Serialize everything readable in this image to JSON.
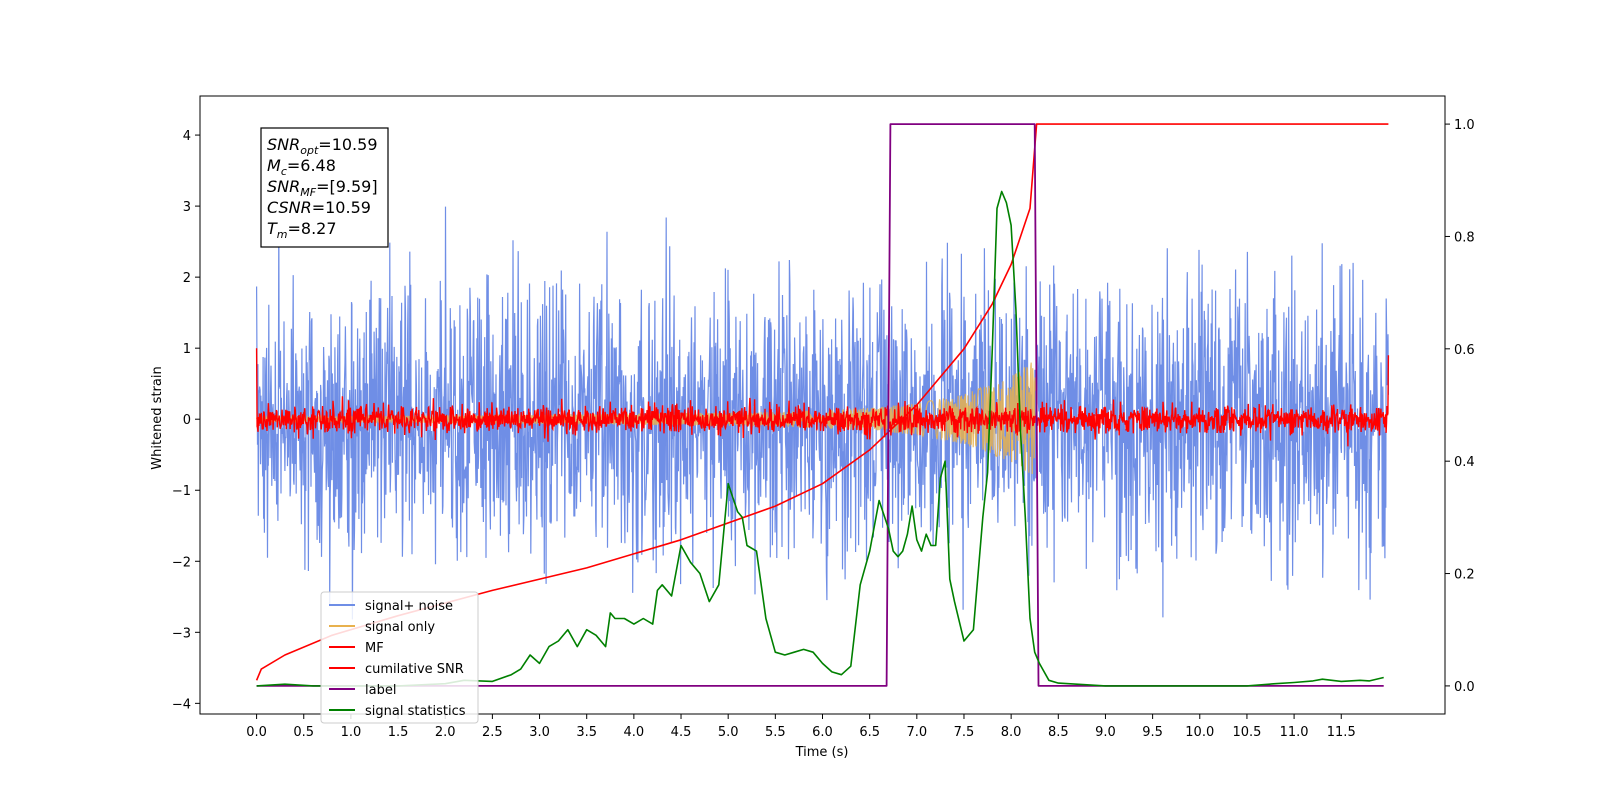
{
  "chart_data": {
    "type": "line",
    "xlabel": "Time (s)",
    "ylabel": "Whitened strain",
    "xlim": [
      -0.6,
      12.6
    ],
    "ylim_left": [
      -4.15,
      4.55
    ],
    "ylim_right": [
      -0.05,
      1.05
    ],
    "x_ticks": [
      0.0,
      0.5,
      1.0,
      1.5,
      2.0,
      2.5,
      3.0,
      3.5,
      4.0,
      4.5,
      5.0,
      5.5,
      6.0,
      6.5,
      7.0,
      7.5,
      8.0,
      8.5,
      9.0,
      9.5,
      10.0,
      10.5,
      11.0,
      11.5
    ],
    "x_tick_labels": [
      "0.0",
      "0.5",
      "1.0",
      "1.5",
      "2.0",
      "2.5",
      "3.0",
      "3.5",
      "4.0",
      "4.5",
      "5.0",
      "5.5",
      "6.0",
      "6.5",
      "7.0",
      "7.5",
      "8.0",
      "8.5",
      "9.0",
      "9.5",
      "10.0",
      "10.5",
      "11.0",
      "11.5"
    ],
    "y_left_ticks": [
      4,
      3,
      2,
      1,
      0,
      -1,
      -2,
      -3,
      -4
    ],
    "y_left_tick_labels": [
      "4",
      "3",
      "2",
      "1",
      "0",
      "−1",
      "−2",
      "−3",
      "−4"
    ],
    "y_right_ticks": [
      1.0,
      0.8,
      0.6,
      0.4,
      0.2,
      0.0
    ],
    "y_right_tick_labels": [
      "1.0",
      "0.8",
      "0.6",
      "0.4",
      "0.2",
      "0.0"
    ],
    "grid": false,
    "legend_position": "lower-left",
    "series": [
      {
        "name": "signal+ noise",
        "color": "#6f8ee6",
        "axis": "left",
        "x_range": [
          0.0,
          12.0
        ],
        "noise_std": 1.0,
        "peak_range": [
          -3.6,
          4.15
        ]
      },
      {
        "name": "signal only",
        "color": "#e8b14e",
        "axis": "left",
        "t_merger": 8.27,
        "amplitude_at": [
          {
            "x": 0.0,
            "amp": 0.03
          },
          {
            "x": 5.5,
            "amp": 0.1
          },
          {
            "x": 6.5,
            "amp": 0.16
          },
          {
            "x": 7.0,
            "amp": 0.22
          },
          {
            "x": 7.5,
            "amp": 0.35
          },
          {
            "x": 8.0,
            "amp": 0.6
          },
          {
            "x": 8.27,
            "amp": 0.85
          }
        ]
      },
      {
        "name": "MF",
        "color": "#ff0000",
        "axis": "left",
        "x_range": [
          0.0,
          12.0
        ],
        "noise_std": 0.1,
        "edge_values": [
          1.0,
          0.9
        ]
      },
      {
        "name": "cumilative SNR",
        "color": "#ff0000",
        "axis": "right",
        "x": [
          0.0,
          0.05,
          0.3,
          0.8,
          1.5,
          2.5,
          3.5,
          4.5,
          5.5,
          6.0,
          6.5,
          7.0,
          7.5,
          7.8,
          8.0,
          8.2,
          8.27,
          12.0
        ],
        "y": [
          0.01,
          0.03,
          0.055,
          0.09,
          0.125,
          0.17,
          0.21,
          0.26,
          0.32,
          0.36,
          0.42,
          0.5,
          0.6,
          0.68,
          0.75,
          0.85,
          1.0,
          1.0
        ]
      },
      {
        "name": "label",
        "color": "#800080",
        "axis": "right",
        "x": [
          0.0,
          6.68,
          6.72,
          8.25,
          8.29,
          11.95
        ],
        "y": [
          0.0,
          0.0,
          1.0,
          1.0,
          0.0,
          0.0
        ]
      },
      {
        "name": "signal statistics",
        "color": "#008000",
        "axis": "right",
        "x": [
          0.0,
          0.3,
          0.6,
          1.0,
          1.5,
          2.0,
          2.2,
          2.5,
          2.7,
          2.8,
          2.9,
          3.0,
          3.1,
          3.2,
          3.3,
          3.4,
          3.5,
          3.6,
          3.7,
          3.75,
          3.8,
          3.9,
          4.0,
          4.1,
          4.2,
          4.25,
          4.3,
          4.4,
          4.5,
          4.6,
          4.7,
          4.8,
          4.9,
          5.0,
          5.1,
          5.15,
          5.2,
          5.3,
          5.4,
          5.5,
          5.6,
          5.7,
          5.8,
          5.9,
          6.0,
          6.1,
          6.2,
          6.3,
          6.4,
          6.5,
          6.6,
          6.7,
          6.75,
          6.8,
          6.85,
          6.9,
          6.95,
          7.0,
          7.05,
          7.1,
          7.15,
          7.2,
          7.25,
          7.3,
          7.35,
          7.4,
          7.5,
          7.6,
          7.7,
          7.75,
          7.8,
          7.85,
          7.9,
          7.95,
          8.0,
          8.05,
          8.1,
          8.15,
          8.2,
          8.25,
          8.3,
          8.4,
          8.5,
          9.0,
          9.5,
          10.0,
          10.5,
          10.8,
          11.0,
          11.2,
          11.3,
          11.5,
          11.7,
          11.8,
          11.95
        ],
        "y": [
          0.0,
          0.003,
          0.0,
          0.0,
          0.0,
          0.004,
          0.01,
          0.008,
          0.02,
          0.03,
          0.055,
          0.04,
          0.07,
          0.08,
          0.1,
          0.07,
          0.1,
          0.09,
          0.07,
          0.13,
          0.12,
          0.12,
          0.11,
          0.12,
          0.11,
          0.17,
          0.18,
          0.16,
          0.25,
          0.22,
          0.2,
          0.15,
          0.18,
          0.36,
          0.31,
          0.3,
          0.25,
          0.24,
          0.12,
          0.06,
          0.055,
          0.06,
          0.065,
          0.06,
          0.04,
          0.025,
          0.02,
          0.035,
          0.18,
          0.24,
          0.33,
          0.28,
          0.24,
          0.23,
          0.24,
          0.27,
          0.32,
          0.26,
          0.24,
          0.27,
          0.25,
          0.25,
          0.37,
          0.4,
          0.19,
          0.15,
          0.08,
          0.1,
          0.3,
          0.38,
          0.6,
          0.85,
          0.88,
          0.86,
          0.82,
          0.67,
          0.45,
          0.3,
          0.12,
          0.06,
          0.04,
          0.01,
          0.005,
          0.0,
          0.0,
          0.0,
          0.0,
          0.004,
          0.006,
          0.009,
          0.012,
          0.008,
          0.01,
          0.009,
          0.015
        ]
      }
    ],
    "annotation": {
      "lines": [
        {
          "base": "SNR",
          "sub": "opt",
          "value": "=10.59"
        },
        {
          "base": "M",
          "sub": "c",
          "value": "=6.48"
        },
        {
          "base": "SNR",
          "sub": "MF",
          "value": "=[9.59]"
        },
        {
          "base": "CSNR",
          "sub": "",
          "value": "=10.59"
        },
        {
          "base": "T",
          "sub": "m",
          "value": "=8.27"
        }
      ]
    }
  }
}
